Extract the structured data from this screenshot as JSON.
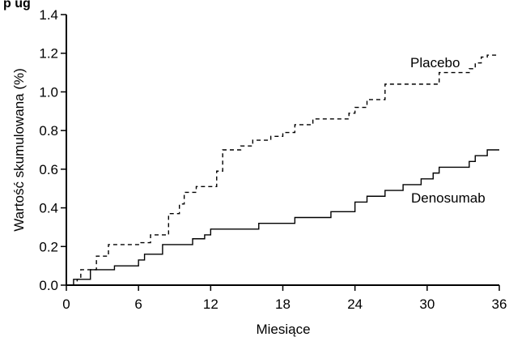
{
  "header_fragment": "p  ug",
  "chart_data": {
    "type": "line",
    "title": "",
    "xlabel": "Miesiące",
    "ylabel": "Wartość skumulowana (%)",
    "xlim": [
      0,
      36
    ],
    "ylim": [
      0,
      1.4
    ],
    "x_ticks": [
      "0",
      "6",
      "12",
      "18",
      "24",
      "30",
      "36"
    ],
    "y_ticks": [
      "0.0",
      "0.2",
      "0.4",
      "0.6",
      "0.8",
      "1.0",
      "1.2",
      "1.4"
    ],
    "grid": false,
    "series": [
      {
        "name": "Placebo",
        "style": "dashed",
        "color": "#000000",
        "step_points": [
          [
            0,
            0.0
          ],
          [
            0.9,
            0.03
          ],
          [
            1.2,
            0.08
          ],
          [
            2.5,
            0.15
          ],
          [
            3.5,
            0.21
          ],
          [
            6.2,
            0.22
          ],
          [
            7.0,
            0.26
          ],
          [
            8.5,
            0.37
          ],
          [
            9.4,
            0.42
          ],
          [
            9.8,
            0.48
          ],
          [
            10.8,
            0.51
          ],
          [
            12.5,
            0.59
          ],
          [
            13.0,
            0.7
          ],
          [
            14.5,
            0.72
          ],
          [
            15.5,
            0.75
          ],
          [
            17.0,
            0.77
          ],
          [
            18.0,
            0.79
          ],
          [
            19.0,
            0.83
          ],
          [
            20.5,
            0.86
          ],
          [
            23.5,
            0.89
          ],
          [
            24.0,
            0.92
          ],
          [
            25.0,
            0.96
          ],
          [
            26.5,
            1.04
          ],
          [
            31.0,
            1.1
          ],
          [
            33.5,
            1.12
          ],
          [
            34.0,
            1.15
          ],
          [
            34.5,
            1.18
          ],
          [
            35.0,
            1.19
          ],
          [
            36.0,
            1.19
          ]
        ]
      },
      {
        "name": "Denosumab",
        "style": "solid",
        "color": "#000000",
        "step_points": [
          [
            0,
            0.0
          ],
          [
            0.6,
            0.03
          ],
          [
            2.0,
            0.08
          ],
          [
            4.0,
            0.1
          ],
          [
            6.0,
            0.13
          ],
          [
            6.5,
            0.16
          ],
          [
            8.0,
            0.21
          ],
          [
            10.5,
            0.24
          ],
          [
            11.5,
            0.26
          ],
          [
            12.0,
            0.29
          ],
          [
            16.0,
            0.32
          ],
          [
            19.0,
            0.35
          ],
          [
            22.0,
            0.38
          ],
          [
            24.0,
            0.43
          ],
          [
            25.0,
            0.46
          ],
          [
            26.5,
            0.49
          ],
          [
            28.0,
            0.52
          ],
          [
            29.5,
            0.55
          ],
          [
            30.5,
            0.58
          ],
          [
            31.0,
            0.61
          ],
          [
            33.5,
            0.64
          ],
          [
            34.0,
            0.67
          ],
          [
            35.0,
            0.7
          ],
          [
            36.0,
            0.7
          ]
        ]
      }
    ]
  }
}
